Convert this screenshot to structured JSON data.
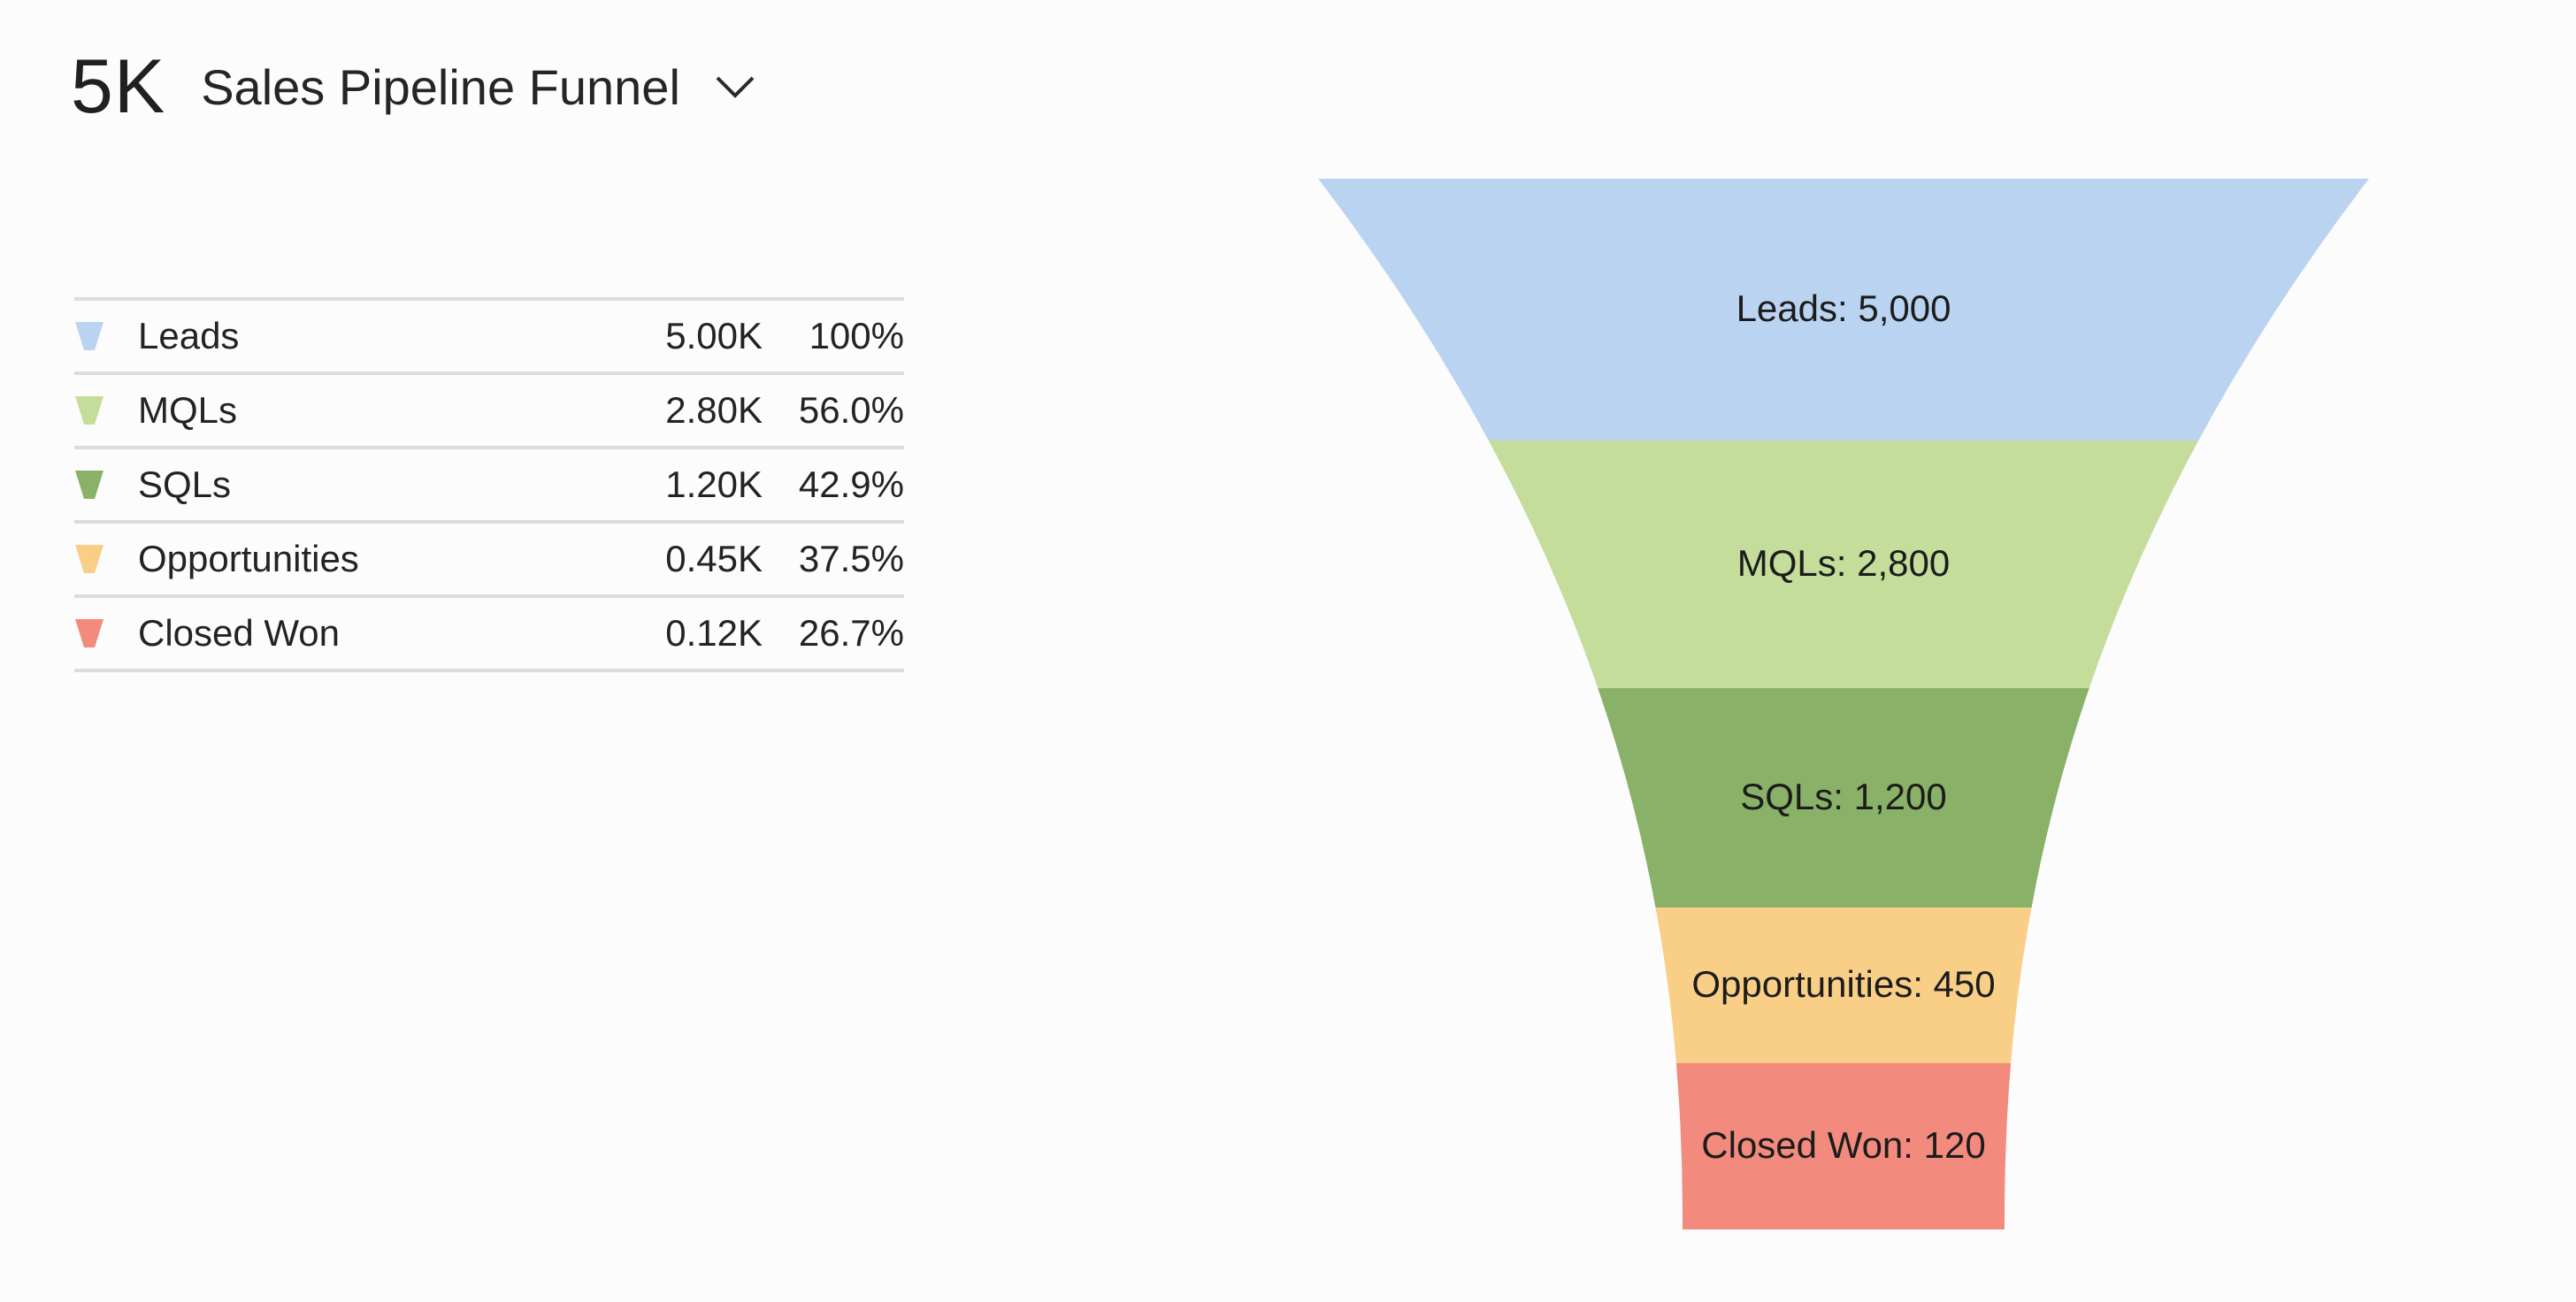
{
  "header": {
    "big_number": "5K",
    "title": "Sales Pipeline Funnel",
    "dropdown_icon": "chevron-down-icon"
  },
  "legend": [
    {
      "label": "Leads",
      "value": "5.00K",
      "pct": "100%",
      "color": "#bad3f1"
    },
    {
      "label": "MQLs",
      "value": "2.80K",
      "pct": "56.0%",
      "color": "#c4dd9b"
    },
    {
      "label": "SQLs",
      "value": "1.20K",
      "pct": "42.9%",
      "color": "#89b167"
    },
    {
      "label": "Opportunities",
      "value": "0.45K",
      "pct": "37.5%",
      "color": "#f9cf87"
    },
    {
      "label": "Closed Won",
      "value": "0.12K",
      "pct": "26.7%",
      "color": "#f28a7d"
    }
  ],
  "chart_data": {
    "type": "funnel",
    "stages": [
      "Leads",
      "MQLs",
      "SQLs",
      "Opportunities",
      "Closed Won"
    ],
    "values": [
      5000,
      2800,
      1200,
      450,
      120
    ],
    "labels": [
      "Leads: 5,000",
      "MQLs: 2,800",
      "SQLs: 1,200",
      "Opportunities: 450",
      "Closed Won: 120"
    ],
    "conversion_pct": [
      "100%",
      "56.0%",
      "42.9%",
      "37.5%",
      "26.7%"
    ],
    "colors": [
      "#bad3f1",
      "#c4dd9b",
      "#89b167",
      "#f9cf87",
      "#f28a7d"
    ]
  }
}
